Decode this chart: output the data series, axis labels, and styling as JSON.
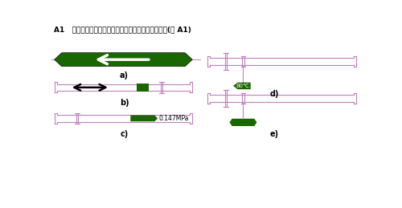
{
  "title": "A1   基本识别色和流向、压力、温度等标识方法参考图(图 A1)",
  "bg_color": "#ffffff",
  "pipe_color": "#c080c0",
  "green_dark": "#1a6600",
  "label_a": "a)",
  "label_b": "b)",
  "label_c": "c)",
  "label_d": "d)",
  "label_e": "e)",
  "pressure_text": "0.147MPa",
  "temp_text": "80℃"
}
